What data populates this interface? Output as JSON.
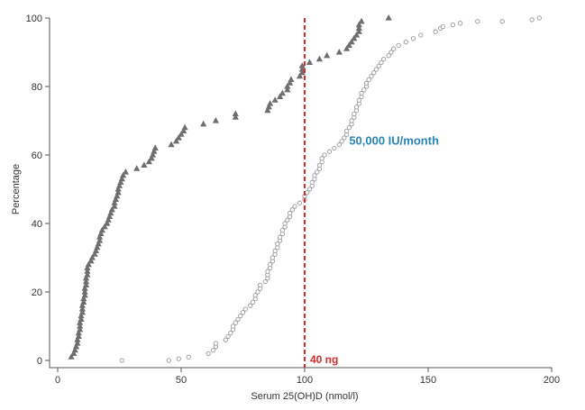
{
  "chart_data": {
    "type": "scatter",
    "title": "",
    "xlabel": "Serum 25(OH)D (nmol/l)",
    "ylabel": "Percentage",
    "xlim": [
      0,
      200
    ],
    "ylim": [
      0,
      100
    ],
    "x_ticks": [
      0,
      50,
      100,
      150,
      200
    ],
    "y_ticks": [
      0,
      20,
      40,
      60,
      80,
      100
    ],
    "grid": false,
    "colors": {
      "triangle_series": "#6e6e6e",
      "circle_series": "#9a9a9a",
      "threshold": "#d62b2b",
      "annotation": "#2a86b8"
    },
    "threshold": {
      "x": 100,
      "label": "40 ng"
    },
    "annotations": [
      {
        "text": "50,000 IU/month",
        "x": 118,
        "y": 63
      }
    ],
    "series": [
      {
        "name": "triangle-series",
        "marker": "triangle",
        "points": [
          [
            5.5,
            1
          ],
          [
            6.5,
            2
          ],
          [
            7,
            3
          ],
          [
            7.5,
            4
          ],
          [
            8,
            5
          ],
          [
            8,
            6
          ],
          [
            8.5,
            7
          ],
          [
            8.5,
            8
          ],
          [
            9,
            9
          ],
          [
            9,
            10
          ],
          [
            9,
            11
          ],
          [
            9.5,
            12
          ],
          [
            9.5,
            13
          ],
          [
            10,
            14
          ],
          [
            10,
            15
          ],
          [
            10,
            16
          ],
          [
            10.5,
            17
          ],
          [
            10.5,
            18
          ],
          [
            11,
            19
          ],
          [
            11,
            20
          ],
          [
            11,
            21
          ],
          [
            11.5,
            22
          ],
          [
            11.5,
            23
          ],
          [
            11.5,
            24
          ],
          [
            12,
            25
          ],
          [
            12,
            26
          ],
          [
            12,
            27
          ],
          [
            12.5,
            28
          ],
          [
            13.5,
            29
          ],
          [
            14,
            30
          ],
          [
            15,
            31
          ],
          [
            15.5,
            32
          ],
          [
            16,
            33
          ],
          [
            16.5,
            34
          ],
          [
            17,
            35
          ],
          [
            17,
            36
          ],
          [
            17.5,
            37
          ],
          [
            18,
            38
          ],
          [
            19,
            39
          ],
          [
            20,
            40
          ],
          [
            20.5,
            41
          ],
          [
            21,
            42
          ],
          [
            21.5,
            43
          ],
          [
            22,
            44
          ],
          [
            23,
            45
          ],
          [
            23,
            46
          ],
          [
            23.5,
            47
          ],
          [
            24,
            48
          ],
          [
            24.5,
            49
          ],
          [
            24.5,
            50
          ],
          [
            25,
            51
          ],
          [
            25.5,
            52
          ],
          [
            26,
            53
          ],
          [
            26.5,
            54
          ],
          [
            27.5,
            55
          ],
          [
            32,
            56
          ],
          [
            35,
            57
          ],
          [
            37,
            58
          ],
          [
            38,
            59
          ],
          [
            38.5,
            60
          ],
          [
            39,
            61
          ],
          [
            39.5,
            62
          ],
          [
            46,
            63
          ],
          [
            48,
            64
          ],
          [
            49,
            65
          ],
          [
            50,
            66
          ],
          [
            51,
            67
          ],
          [
            51.5,
            68
          ],
          [
            59,
            69
          ],
          [
            64,
            70
          ],
          [
            72,
            71
          ],
          [
            72,
            72
          ],
          [
            85,
            73
          ],
          [
            85.5,
            74
          ],
          [
            86,
            75
          ],
          [
            88,
            76
          ],
          [
            90,
            77
          ],
          [
            91,
            78
          ],
          [
            93,
            79
          ],
          [
            93,
            80
          ],
          [
            94,
            81
          ],
          [
            94.5,
            82
          ],
          [
            98,
            83
          ],
          [
            99,
            84
          ],
          [
            99,
            85
          ],
          [
            99,
            86
          ],
          [
            102,
            87
          ],
          [
            106,
            88
          ],
          [
            109,
            89
          ],
          [
            114,
            90
          ],
          [
            117,
            91
          ],
          [
            118,
            92
          ],
          [
            119,
            93
          ],
          [
            120,
            94
          ],
          [
            121,
            95
          ],
          [
            122,
            96
          ],
          [
            122,
            97
          ],
          [
            122,
            98
          ],
          [
            123,
            99
          ],
          [
            134,
            100
          ]
        ]
      },
      {
        "name": "circle-series",
        "marker": "circle",
        "points": [
          [
            26,
            0
          ],
          [
            45,
            0
          ],
          [
            49,
            0.5
          ],
          [
            53,
            1
          ],
          [
            61,
            2
          ],
          [
            63,
            3
          ],
          [
            64,
            4
          ],
          [
            64,
            5
          ],
          [
            68,
            6
          ],
          [
            69,
            7
          ],
          [
            70,
            8
          ],
          [
            71,
            9
          ],
          [
            71,
            10
          ],
          [
            72,
            11
          ],
          [
            73,
            12
          ],
          [
            74,
            13
          ],
          [
            75,
            14
          ],
          [
            76,
            15
          ],
          [
            78,
            16
          ],
          [
            79,
            17
          ],
          [
            80,
            18
          ],
          [
            80,
            19
          ],
          [
            81,
            20
          ],
          [
            82,
            21
          ],
          [
            82,
            22
          ],
          [
            84,
            23
          ],
          [
            85,
            24
          ],
          [
            85,
            25
          ],
          [
            85,
            26
          ],
          [
            86,
            27
          ],
          [
            86,
            28
          ],
          [
            87,
            29
          ],
          [
            87,
            30
          ],
          [
            88,
            31
          ],
          [
            88,
            32
          ],
          [
            89,
            33
          ],
          [
            89,
            34
          ],
          [
            90,
            35
          ],
          [
            90,
            36
          ],
          [
            91,
            37
          ],
          [
            91,
            38
          ],
          [
            92,
            39
          ],
          [
            92,
            40
          ],
          [
            93,
            41
          ],
          [
            94,
            42
          ],
          [
            94,
            43
          ],
          [
            95,
            44
          ],
          [
            96,
            45
          ],
          [
            98,
            46
          ],
          [
            100,
            47
          ],
          [
            100,
            48
          ],
          [
            101,
            49
          ],
          [
            102,
            50
          ],
          [
            103,
            51
          ],
          [
            103,
            52
          ],
          [
            104,
            53
          ],
          [
            104,
            54
          ],
          [
            105,
            55
          ],
          [
            106,
            56
          ],
          [
            106,
            57
          ],
          [
            107,
            58
          ],
          [
            107,
            59
          ],
          [
            108,
            60
          ],
          [
            110,
            61
          ],
          [
            112,
            62
          ],
          [
            114,
            63
          ],
          [
            115,
            64
          ],
          [
            116,
            65
          ],
          [
            117,
            66
          ],
          [
            117,
            67
          ],
          [
            118,
            68
          ],
          [
            119,
            69
          ],
          [
            119,
            70
          ],
          [
            120,
            71
          ],
          [
            120,
            72
          ],
          [
            121,
            73
          ],
          [
            121,
            74
          ],
          [
            122,
            75
          ],
          [
            122,
            76
          ],
          [
            123,
            77
          ],
          [
            123,
            78
          ],
          [
            124,
            79
          ],
          [
            125,
            80
          ],
          [
            125,
            81
          ],
          [
            126,
            82
          ],
          [
            127,
            83
          ],
          [
            128,
            84
          ],
          [
            129,
            85
          ],
          [
            130,
            86
          ],
          [
            131,
            87
          ],
          [
            132,
            88
          ],
          [
            134,
            89
          ],
          [
            135,
            90
          ],
          [
            136,
            91
          ],
          [
            138,
            92
          ],
          [
            141,
            93
          ],
          [
            144,
            94
          ],
          [
            147,
            95
          ],
          [
            153,
            96
          ],
          [
            155,
            97
          ],
          [
            156,
            97.5
          ],
          [
            160,
            98
          ],
          [
            163,
            98.5
          ],
          [
            170,
            99
          ],
          [
            180,
            99
          ],
          [
            192,
            99.5
          ],
          [
            195,
            100
          ]
        ]
      }
    ]
  }
}
